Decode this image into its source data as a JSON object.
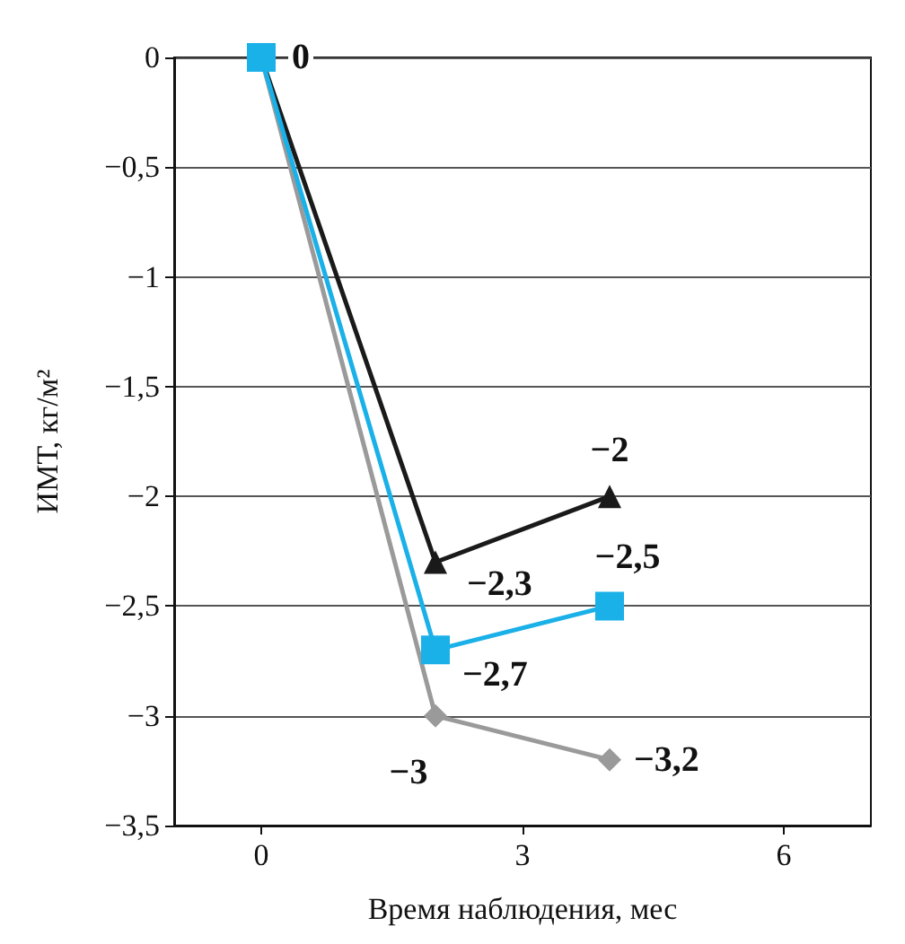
{
  "chart_data": {
    "type": "line",
    "xlabel": "Время наблюдения, мес",
    "ylabel": "ИМТ, кг/м²",
    "x": [
      0,
      2,
      4
    ],
    "series": [
      {
        "color": "#1a1a1a",
        "marker": "triangle",
        "values": [
          0,
          -2.3,
          -2
        ],
        "value_labels": [
          null,
          "−2,3",
          "−2"
        ]
      },
      {
        "color": "#9a9a9a",
        "marker": "diamond",
        "values": [
          0,
          -3,
          -3.2
        ],
        "value_labels": [
          null,
          "−3",
          "−3,2"
        ]
      },
      {
        "color": "#1ab0e8",
        "marker": "square",
        "values": [
          0,
          -2.7,
          -2.5
        ],
        "value_labels": [
          "0",
          "−2,7",
          "−2,5"
        ]
      }
    ],
    "xlim": [
      -1,
      7
    ],
    "xticks": [
      0,
      3,
      6
    ],
    "ylim": [
      -3.5,
      0
    ],
    "yticks": [
      0,
      {
        "value": -0.5,
        "label": "−0,5"
      },
      {
        "value": -1,
        "label": "−1"
      },
      {
        "value": -1.5,
        "label": "−1,5"
      },
      {
        "value": -2,
        "label": "−2"
      },
      {
        "value": -2.5,
        "label": "−2,5"
      },
      {
        "value": -3,
        "label": "−3"
      },
      {
        "value": -3.5,
        "label": "−3,5"
      }
    ],
    "grid": "y",
    "line_style": "solid"
  }
}
